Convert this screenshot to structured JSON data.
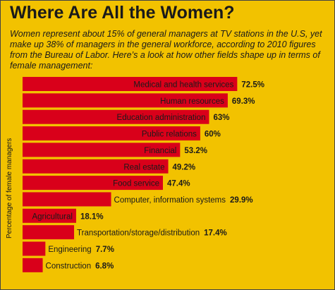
{
  "title": "Where Are All the Women?",
  "subtitle": "Women represent about 15% of general managers at TV stations in the U.S, yet make up 38% of managers in the general workforce, according to 2010 figures from the Bureau of Labor. Here’s a look at how other fields shape up in terms of female management:",
  "colors": {
    "background": "#f2c200",
    "bar": "#d9001a",
    "text": "#1a1a1a"
  },
  "chart_data": {
    "type": "bar",
    "orientation": "horizontal",
    "ylabel": "Percentage of female managers",
    "categories": [
      "Medical and health services",
      "Human resources",
      "Education administration",
      "Public relations",
      "Financial",
      "Real estate",
      "Food service",
      "Computer, information systems",
      "Agricultural",
      "Transportation/storage/distribution",
      "Engineering",
      "Construction"
    ],
    "values": [
      72.5,
      69.3,
      63,
      60,
      53.2,
      49.2,
      47.4,
      29.9,
      18.1,
      17.4,
      7.7,
      6.8
    ],
    "value_labels": [
      "72.5%",
      "69.3%",
      "63%",
      "60%",
      "53.2%",
      "49.2%",
      "47.4%",
      "29.9%",
      "18.1%",
      "17.4%",
      "7.7%",
      "6.8%"
    ],
    "xlim": [
      0,
      80
    ],
    "grid": false,
    "legend": "none"
  }
}
